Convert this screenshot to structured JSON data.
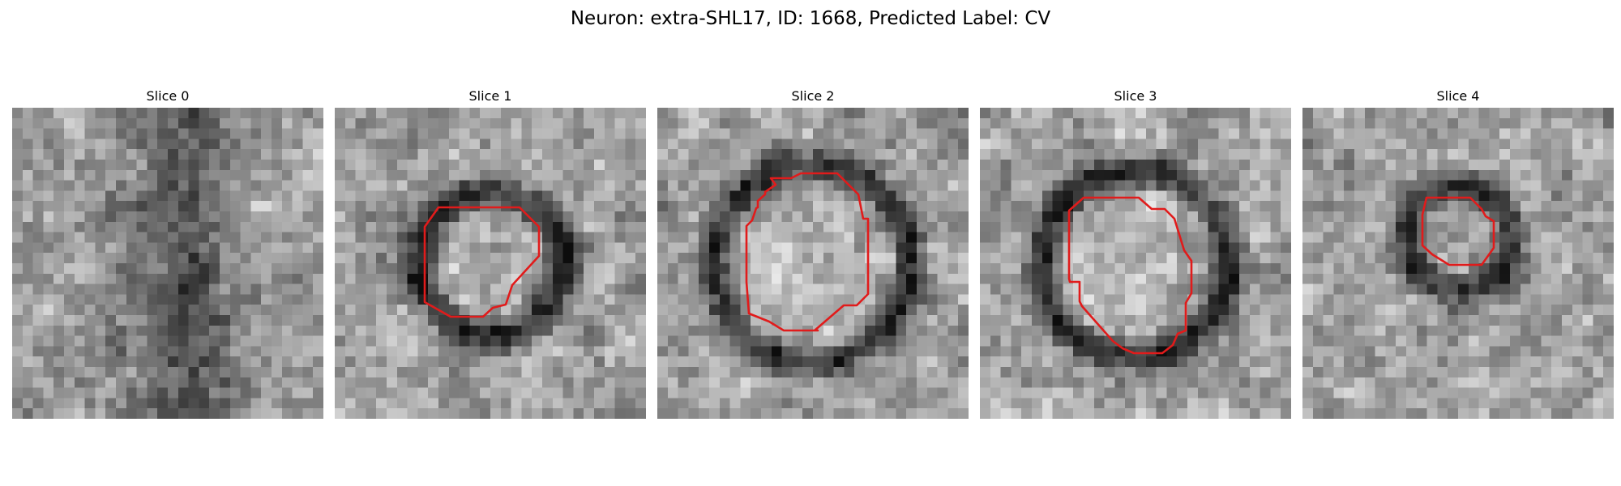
{
  "figure": {
    "title": "Neuron: extra-SHL17, ID: 1668, Predicted Label: CV"
  },
  "slices": [
    {
      "title": "Slice 0",
      "contour": false
    },
    {
      "title": "Slice 1",
      "contour": true
    },
    {
      "title": "Slice 2",
      "contour": true
    },
    {
      "title": "Slice 3",
      "contour": true
    },
    {
      "title": "Slice 4",
      "contour": true
    }
  ],
  "colors": {
    "contour": "#e11b1b",
    "background": "#ffffff"
  }
}
